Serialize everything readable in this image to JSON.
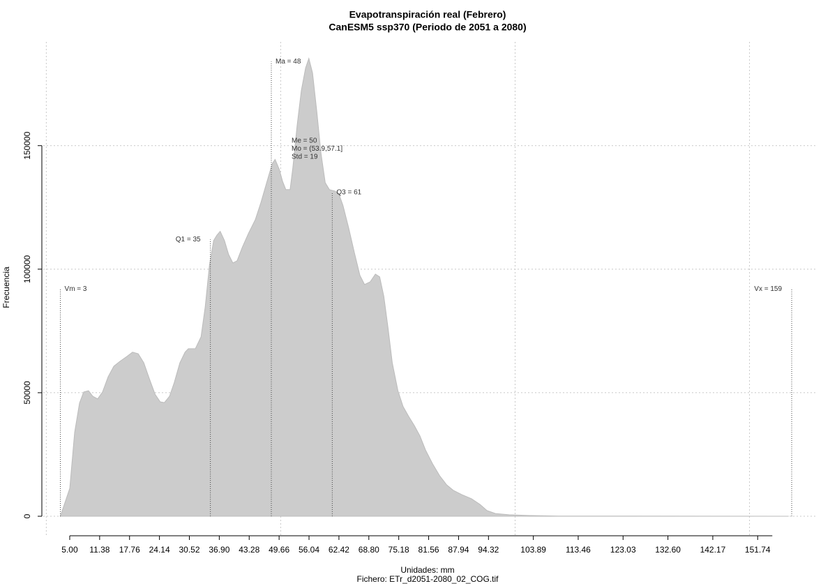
{
  "chart_data": {
    "type": "area",
    "title": "Evapotranspiración real (Febrero)",
    "subtitle": "CanESM5 ssp370 (Periodo de 2051 a 2080)",
    "xlabel": "Unidades: mm",
    "ylabel": "Frecuencia",
    "footnote": "Fichero: ETr_d2051-2080_02_COG.tif",
    "color": "#cccccc",
    "x": [
      3,
      5,
      6.04,
      7.08,
      7.98,
      9.0,
      9.9,
      10.95,
      12.0,
      13.2,
      14.4,
      15.7,
      17.2,
      18.4,
      19.6,
      20.8,
      22.0,
      23.2,
      24.3,
      25.2,
      26.3,
      27.3,
      28.5,
      29.6,
      30.3,
      31.8,
      33.0,
      33.9,
      34.8,
      35.7,
      36.4,
      37.1,
      38.0,
      38.9,
      39.8,
      40.7,
      41.8,
      43.1,
      44.6,
      45.8,
      47.0,
      48.2,
      48.8,
      49.7,
      50.4,
      51.1,
      52.0,
      52.6,
      53.5,
      54.4,
      55.3,
      56.0,
      56.8,
      57.7,
      58.6,
      59.5,
      60.4,
      61.6,
      62.4,
      63.3,
      64.5,
      65.7,
      66.9,
      67.9,
      69.1,
      70.2,
      71.1,
      72.0,
      72.9,
      73.8,
      75.0,
      76.1,
      77.3,
      78.5,
      79.7,
      80.9,
      82.4,
      83.9,
      85.4,
      86.8,
      88.6,
      90.7,
      92.5,
      94.0,
      95.8,
      98.7,
      103.2,
      109.2,
      124,
      158.3
    ],
    "values": [
      0,
      11300,
      33900,
      45800,
      50300,
      50800,
      48600,
      47500,
      50300,
      56500,
      60700,
      62700,
      64700,
      66400,
      65800,
      62100,
      55600,
      49400,
      46300,
      46000,
      48600,
      54200,
      62100,
      66400,
      67800,
      67800,
      72600,
      84700,
      101700,
      111600,
      113800,
      115300,
      111600,
      105900,
      102500,
      103400,
      108800,
      114400,
      120100,
      127100,
      135000,
      142700,
      144400,
      140400,
      135600,
      132200,
      132200,
      141200,
      158200,
      172300,
      181400,
      185300,
      179400,
      163800,
      146900,
      135000,
      132200,
      131600,
      130500,
      125700,
      116700,
      106800,
      97500,
      93800,
      94900,
      98000,
      96900,
      89000,
      76300,
      62100,
      50800,
      44400,
      40400,
      36700,
      32500,
      26800,
      21200,
      16400,
      12700,
      10500,
      8800,
      7100,
      4800,
      2300,
      1100,
      600,
      300,
      100,
      50,
      0
    ],
    "xlim": [
      -0.65,
      164.2
    ],
    "ylim": [
      -7900,
      192000
    ],
    "xticks": [
      {
        "value": 5,
        "label": "5.00"
      },
      11.38,
      17.76,
      24.14,
      30.52,
      {
        "value": 36.9,
        "label": "36.90"
      },
      43.28,
      49.66,
      56.04,
      62.42,
      {
        "value": 68.8,
        "label": "68.80"
      },
      75.18,
      81.56,
      87.94,
      94.32,
      103.89,
      113.46,
      123.03,
      {
        "value": 132.6,
        "label": "132.60"
      },
      142.17,
      151.74
    ],
    "yticks": [
      0,
      50000,
      100000,
      150000
    ],
    "xgrid": [
      0,
      50,
      100,
      150
    ],
    "grid": true,
    "stats": [
      {
        "label": "Vm = 3",
        "x": 3,
        "y": 92000
      },
      {
        "label": "Q1 = 35",
        "x": 35,
        "y": 112000
      },
      {
        "label": "Ma = 48",
        "x": 48,
        "y": 184000
      },
      {
        "label": "Q3 = 61",
        "x": 61,
        "y": 131000
      },
      {
        "label": "Vx = 159",
        "x": 159,
        "y": 92000
      }
    ],
    "notes": [
      "Me = 50",
      "Mo = (53.9,57.1]",
      "Std = 19"
    ]
  }
}
